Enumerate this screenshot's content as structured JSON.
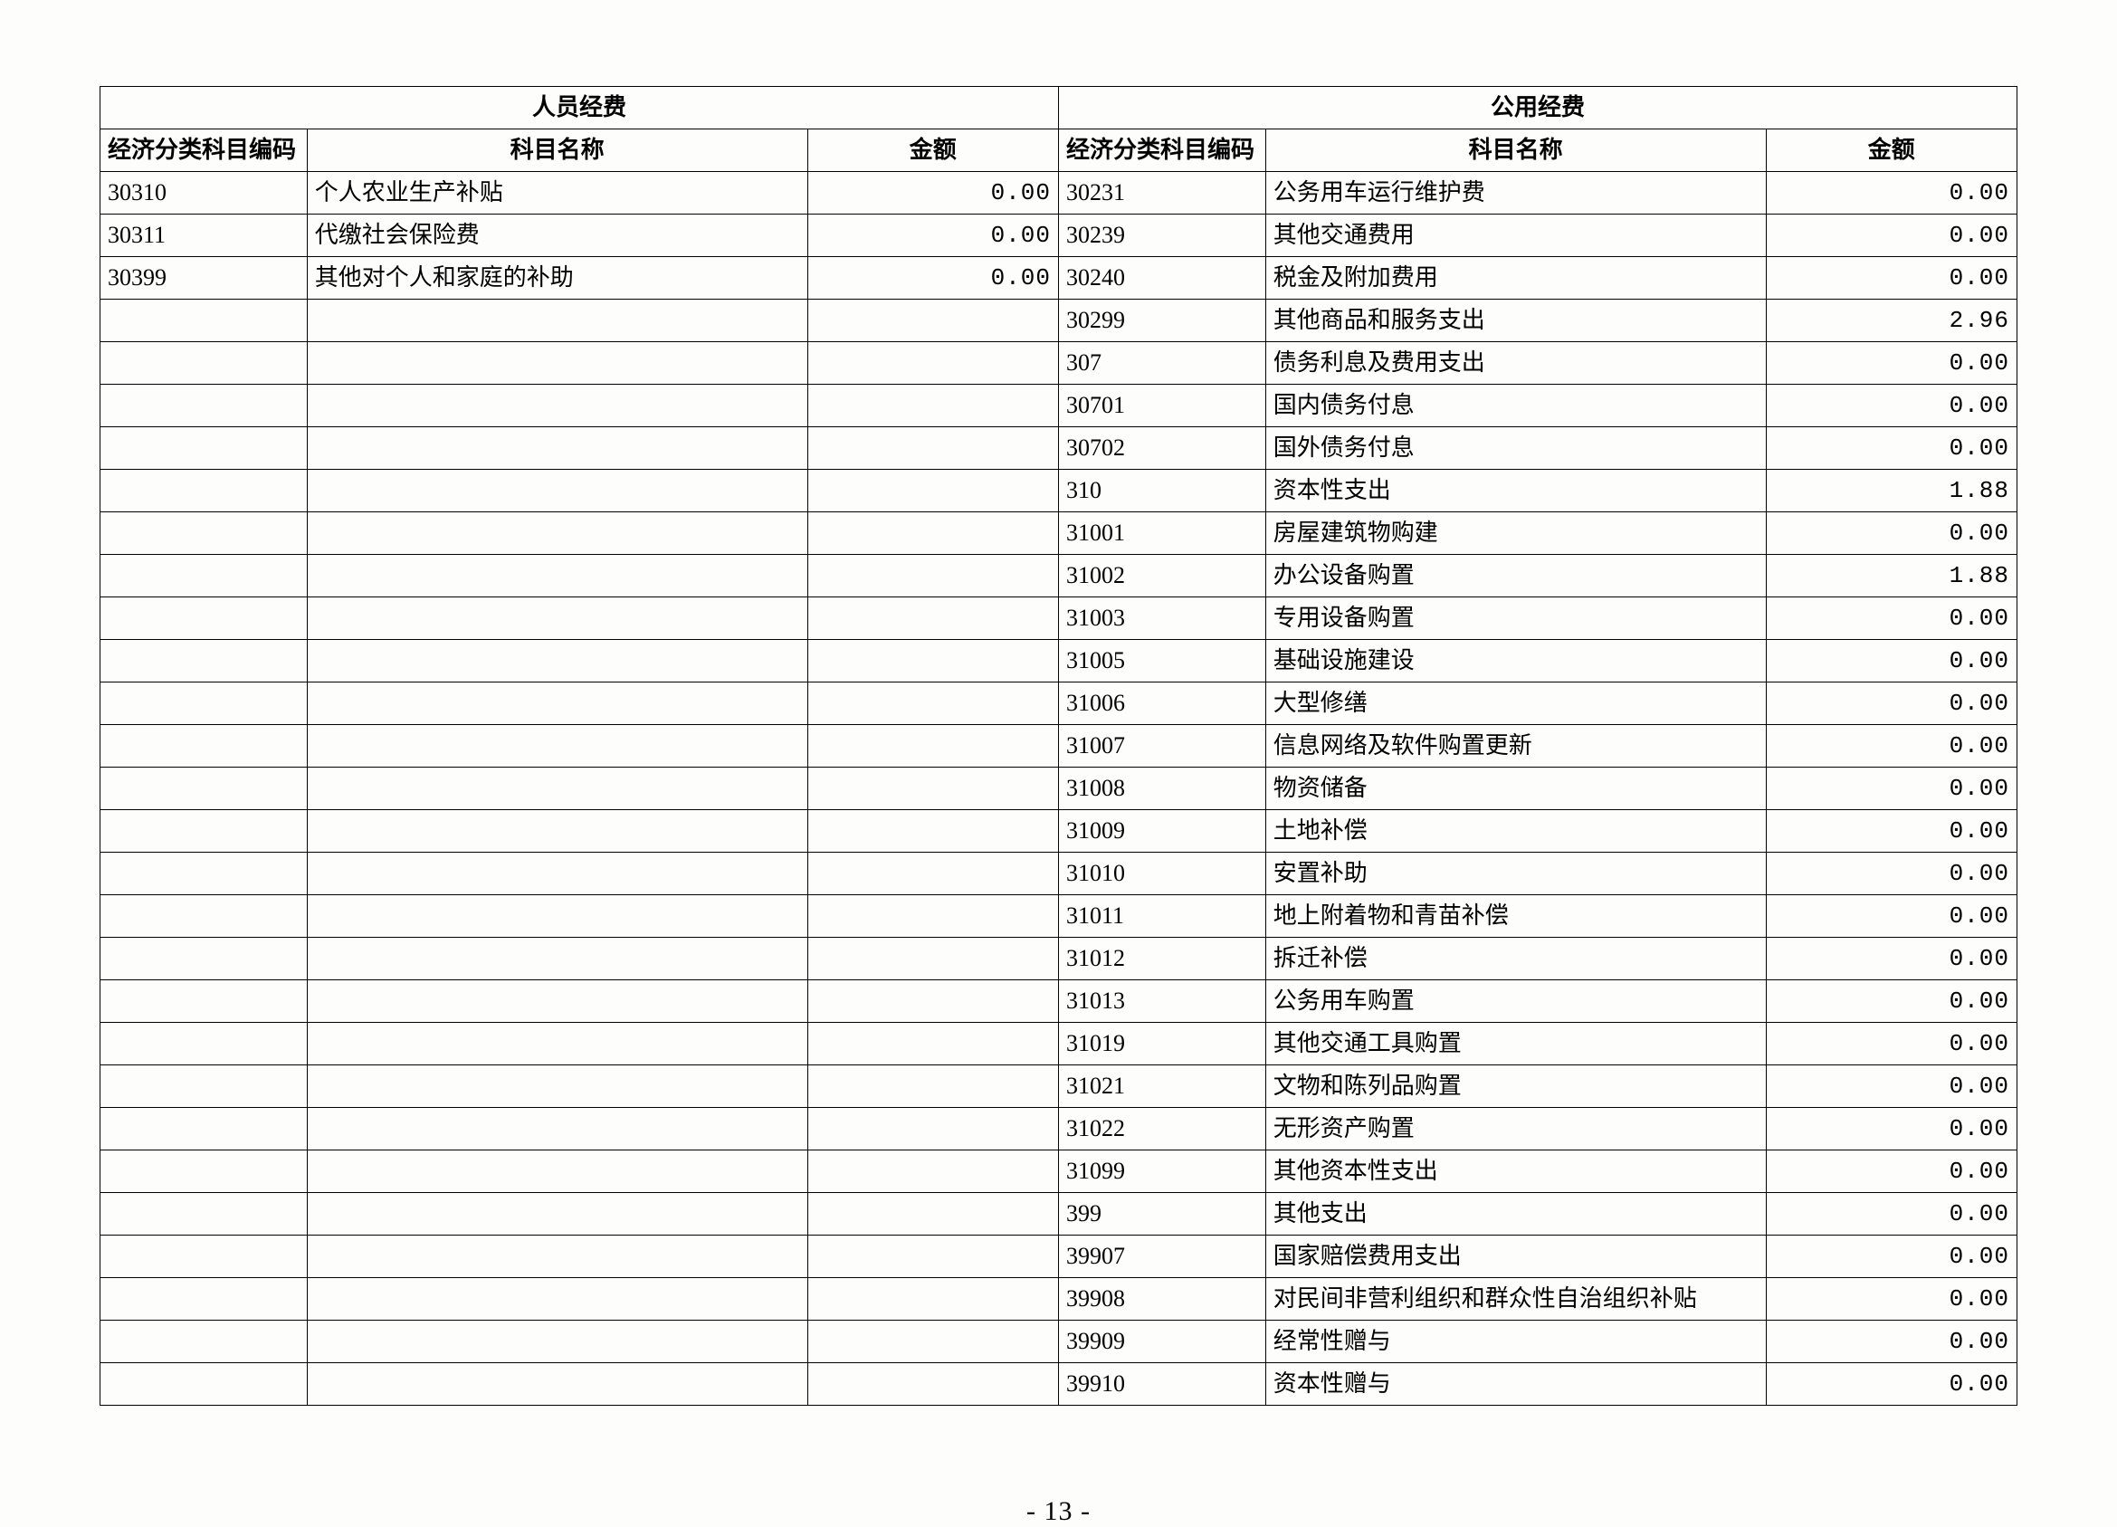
{
  "table": {
    "header_group_left": "人员经费",
    "header_group_right": "公用经费",
    "col_code": "经济分类科目编码",
    "col_name": "科目名称",
    "col_amount": "金额",
    "column_widths_pct": [
      10.8,
      26.1,
      13.1,
      10.8,
      26.1,
      13.1
    ],
    "left_rows": [
      {
        "code": "30310",
        "name": "个人农业生产补贴",
        "amount": "0.00"
      },
      {
        "code": "30311",
        "name": "代缴社会保险费",
        "amount": "0.00"
      },
      {
        "code": "30399",
        "name": "其他对个人和家庭的补助",
        "amount": "0.00"
      }
    ],
    "right_rows": [
      {
        "code": "30231",
        "name": "公务用车运行维护费",
        "amount": "0.00"
      },
      {
        "code": "30239",
        "name": "其他交通费用",
        "amount": "0.00"
      },
      {
        "code": "30240",
        "name": "税金及附加费用",
        "amount": "0.00"
      },
      {
        "code": "30299",
        "name": "其他商品和服务支出",
        "amount": "2.96"
      },
      {
        "code": "307",
        "name": "债务利息及费用支出",
        "amount": "0.00"
      },
      {
        "code": "30701",
        "name": "国内债务付息",
        "amount": "0.00"
      },
      {
        "code": "30702",
        "name": "国外债务付息",
        "amount": "0.00"
      },
      {
        "code": "310",
        "name": "资本性支出",
        "amount": "1.88"
      },
      {
        "code": "31001",
        "name": "房屋建筑物购建",
        "amount": "0.00"
      },
      {
        "code": "31002",
        "name": "办公设备购置",
        "amount": "1.88"
      },
      {
        "code": "31003",
        "name": "专用设备购置",
        "amount": "0.00"
      },
      {
        "code": "31005",
        "name": "基础设施建设",
        "amount": "0.00"
      },
      {
        "code": "31006",
        "name": "大型修缮",
        "amount": "0.00"
      },
      {
        "code": "31007",
        "name": "信息网络及软件购置更新",
        "amount": "0.00"
      },
      {
        "code": "31008",
        "name": "物资储备",
        "amount": "0.00"
      },
      {
        "code": "31009",
        "name": "土地补偿",
        "amount": "0.00"
      },
      {
        "code": "31010",
        "name": "安置补助",
        "amount": "0.00"
      },
      {
        "code": "31011",
        "name": "地上附着物和青苗补偿",
        "amount": "0.00"
      },
      {
        "code": "31012",
        "name": "拆迁补偿",
        "amount": "0.00"
      },
      {
        "code": "31013",
        "name": "公务用车购置",
        "amount": "0.00"
      },
      {
        "code": "31019",
        "name": "其他交通工具购置",
        "amount": "0.00"
      },
      {
        "code": "31021",
        "name": "文物和陈列品购置",
        "amount": "0.00"
      },
      {
        "code": "31022",
        "name": "无形资产购置",
        "amount": "0.00"
      },
      {
        "code": "31099",
        "name": "其他资本性支出",
        "amount": "0.00"
      },
      {
        "code": "399",
        "name": "其他支出",
        "amount": "0.00"
      },
      {
        "code": "39907",
        "name": "国家赔偿费用支出",
        "amount": "0.00"
      },
      {
        "code": "39908",
        "name": "对民间非营利组织和群众性自治组织补贴",
        "amount": "0.00"
      },
      {
        "code": "39909",
        "name": "经常性赠与",
        "amount": "0.00"
      },
      {
        "code": "39910",
        "name": "资本性赠与",
        "amount": "0.00"
      }
    ]
  },
  "page_number": "- 13 -"
}
